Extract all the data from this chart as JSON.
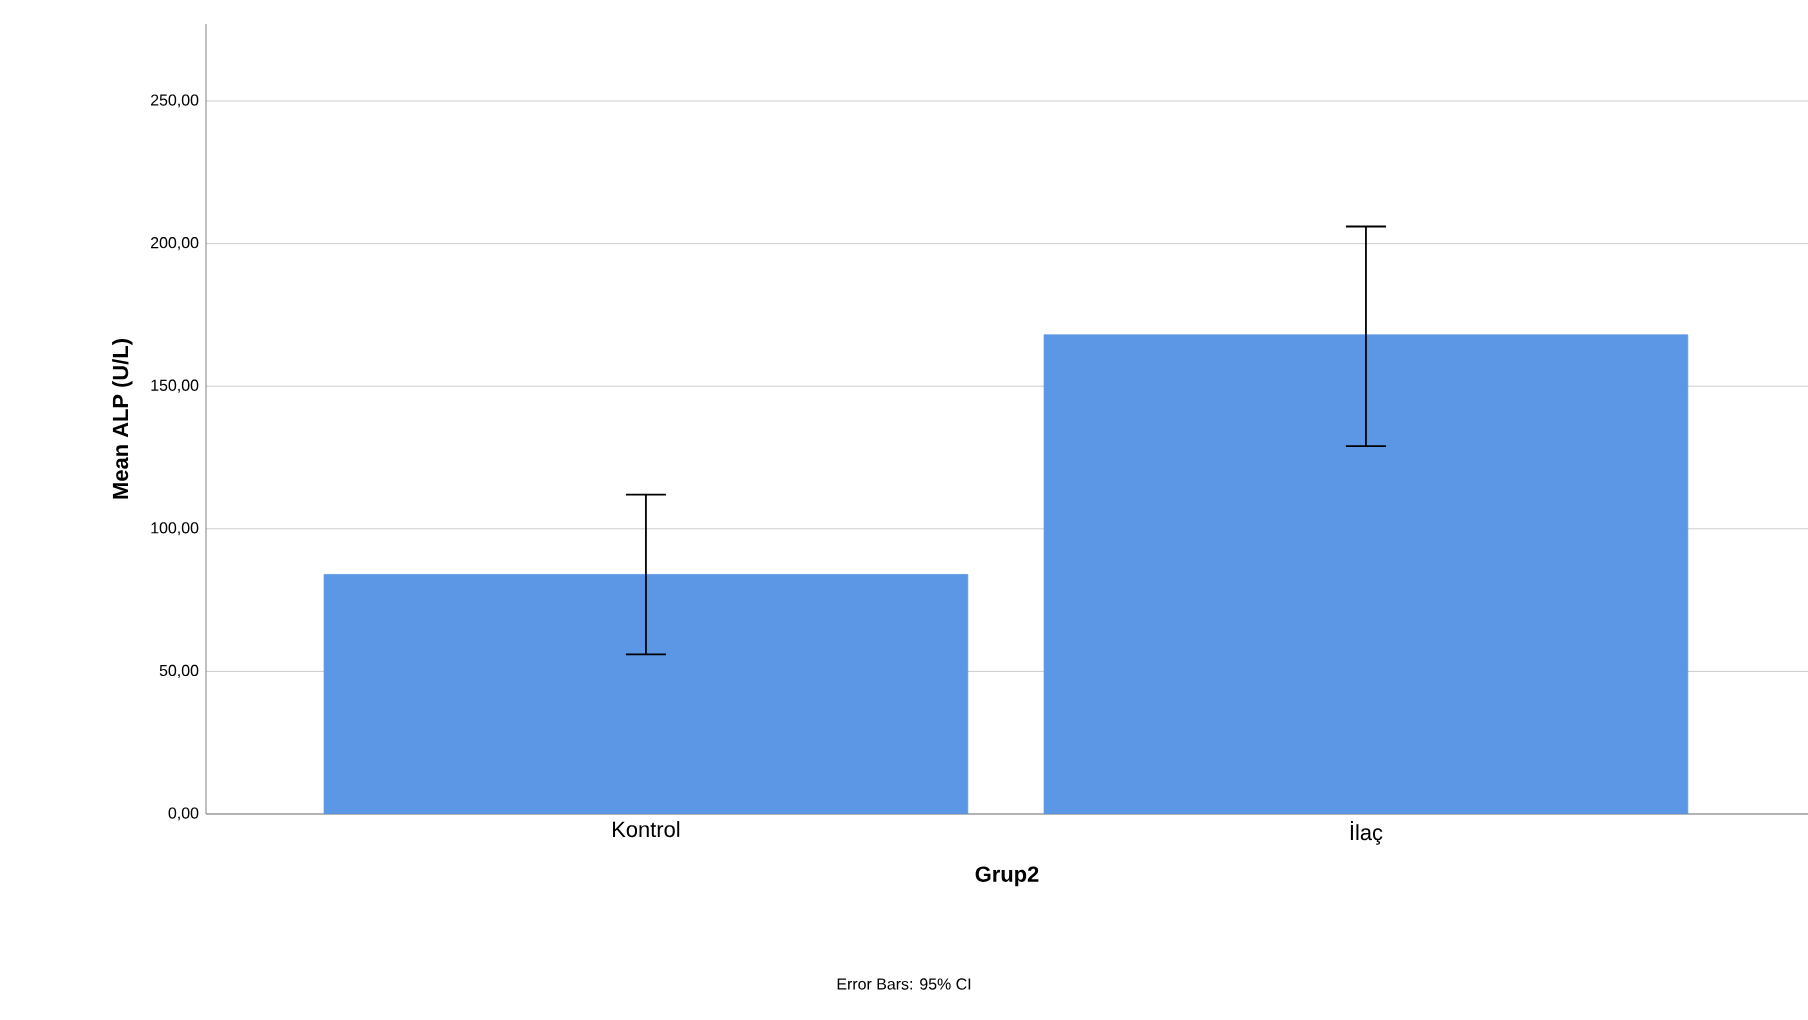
{
  "chart_data": {
    "type": "bar",
    "categories": [
      "Kontrol",
      "İlaç"
    ],
    "values": [
      84,
      168
    ],
    "errors": [
      [
        56,
        112
      ],
      [
        129,
        206
      ]
    ],
    "color": "#5b97e5",
    "xlabel": "Grup2",
    "ylabel": "Mean ALP (U/L)",
    "ylim": [
      0,
      277
    ],
    "yticks": [
      {
        "value": 0,
        "label": "0,00"
      },
      {
        "value": 50,
        "label": "50,00"
      },
      {
        "value": 100,
        "label": "100,00"
      },
      {
        "value": 150,
        "label": "150,00"
      },
      {
        "value": 200,
        "label": "200,00"
      },
      {
        "value": 250,
        "label": "250,00"
      }
    ],
    "grid": "y",
    "annotations": [
      "Error Bars: 95% CI"
    ]
  }
}
